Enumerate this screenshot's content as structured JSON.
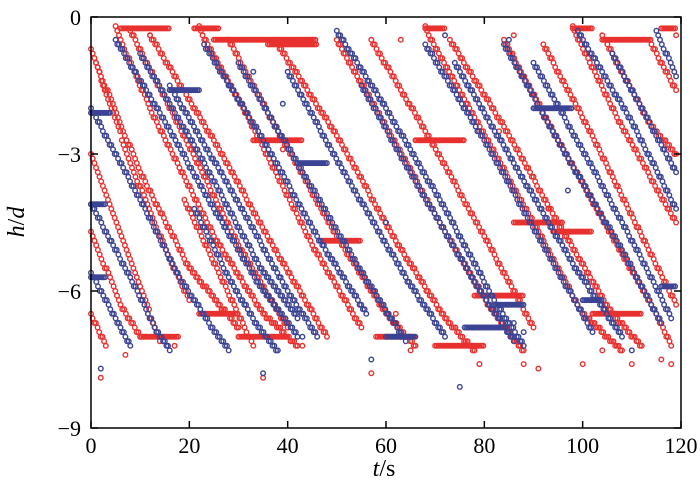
{
  "chart_data": {
    "type": "scatter",
    "title": "",
    "xlabel": {
      "italic": "t",
      "rest": "/s"
    },
    "ylabel": {
      "italic": "h",
      "sep": "/",
      "italic2": "d"
    },
    "xlim": [
      0,
      120
    ],
    "ylim": [
      -9,
      0
    ],
    "xticks": [
      0,
      20,
      40,
      60,
      80,
      100,
      120
    ],
    "xtick_labels": [
      "0",
      "20",
      "40",
      "60",
      "80",
      "100",
      "120"
    ],
    "yticks": [
      0,
      -3,
      -6,
      -9
    ],
    "ytick_labels": [
      "0",
      "−3",
      "−6",
      "−9"
    ],
    "grid": false,
    "legend": "none",
    "marker": "open-circle",
    "colors": {
      "red": "#e8312f",
      "blue": "#3b4394"
    },
    "series": [
      {
        "color": "red",
        "tracks": [
          [
            [
              0.0,
              -0.7
            ],
            [
              8.0,
              -3.2
            ],
            [
              16.0,
              -5.3
            ],
            [
              20.0,
              -6.2
            ]
          ],
          [
            [
              0.0,
              -3.0
            ],
            [
              10.0,
              -5.9
            ],
            [
              14.0,
              -7.1
            ]
          ],
          [
            [
              0.0,
              -4.7
            ],
            [
              6.0,
              -6.3
            ],
            [
              10.0,
              -7.0
            ]
          ],
          [
            [
              0.0,
              -6.5
            ],
            [
              3.0,
              -7.2
            ]
          ],
          [
            [
              1.0,
              -1.0
            ],
            [
              10.0,
              -3.4
            ],
            [
              20.0,
              -5.5
            ],
            [
              30.0,
              -6.8
            ]
          ],
          [
            [
              5.0,
              -0.25
            ],
            [
              12.0,
              -2.0
            ],
            [
              25.0,
              -4.8
            ],
            [
              35.0,
              -6.5
            ],
            [
              42.0,
              -7.2
            ]
          ],
          [
            [
              8.0,
              -0.3
            ],
            [
              18.0,
              -2.4
            ],
            [
              30.0,
              -5.0
            ],
            [
              40.0,
              -6.8
            ]
          ],
          [
            [
              12.0,
              -0.4
            ],
            [
              25.0,
              -2.7
            ],
            [
              38.0,
              -5.2
            ],
            [
              48.0,
              -7.0
            ]
          ],
          [
            [
              19.0,
              -4.0
            ],
            [
              26.0,
              -5.6
            ],
            [
              33.0,
              -7.2
            ]
          ],
          [
            [
              22.0,
              -0.25
            ],
            [
              32.0,
              -2.2
            ],
            [
              45.0,
              -5.0
            ],
            [
              55.0,
              -6.8
            ]
          ],
          [
            [
              28.0,
              -0.5
            ],
            [
              38.0,
              -2.5
            ],
            [
              50.0,
              -4.8
            ],
            [
              60.0,
              -6.5
            ],
            [
              66.0,
              -7.2
            ]
          ],
          [
            [
              38.0,
              -0.6
            ],
            [
              50.0,
              -2.6
            ],
            [
              62.0,
              -4.9
            ],
            [
              72.0,
              -6.6
            ],
            [
              78.0,
              -7.3
            ]
          ],
          [
            [
              50.0,
              -0.5
            ],
            [
              60.0,
              -2.4
            ],
            [
              72.0,
              -4.7
            ],
            [
              82.0,
              -6.5
            ],
            [
              88.0,
              -7.3
            ]
          ],
          [
            [
              57.0,
              -0.5
            ],
            [
              68.0,
              -2.5
            ],
            [
              80.0,
              -4.8
            ],
            [
              90.0,
              -6.8
            ]
          ],
          [
            [
              68.0,
              -0.25
            ],
            [
              78.0,
              -2.2
            ],
            [
              90.0,
              -4.5
            ],
            [
              100.0,
              -6.5
            ],
            [
              108.0,
              -7.3
            ]
          ],
          [
            [
              73.0,
              -0.5
            ],
            [
              84.0,
              -2.4
            ],
            [
              96.0,
              -4.7
            ],
            [
              106.0,
              -6.5
            ],
            [
              112.0,
              -7.2
            ]
          ],
          [
            [
              84.0,
              -0.5
            ],
            [
              94.0,
              -2.5
            ],
            [
              106.0,
              -4.8
            ],
            [
              115.0,
              -6.5
            ],
            [
              118.0,
              -7.2
            ]
          ],
          [
            [
              92.0,
              -0.6
            ],
            [
              102.0,
              -2.6
            ],
            [
              112.0,
              -4.8
            ],
            [
              119.0,
              -6.3
            ]
          ],
          [
            [
              98.0,
              -0.25
            ],
            [
              108.0,
              -2.4
            ],
            [
              119.0,
              -4.5
            ]
          ],
          [
            [
              104.0,
              -0.4
            ],
            [
              114.0,
              -2.4
            ],
            [
              119.0,
              -3.0
            ]
          ],
          [
            [
              114.0,
              -0.6
            ],
            [
              119.0,
              -1.6
            ]
          ]
        ],
        "flats": [
          [
            6.0,
            16.0,
            -0.25
          ],
          [
            21.0,
            26.0,
            -0.25
          ],
          [
            25.0,
            46.0,
            -0.5
          ],
          [
            36.0,
            46.0,
            -0.6
          ],
          [
            33.0,
            43.0,
            -2.7
          ],
          [
            22.0,
            30.0,
            -6.5
          ],
          [
            10.0,
            18.0,
            -7.0
          ],
          [
            30.0,
            40.0,
            -7.0
          ],
          [
            58.0,
            66.0,
            -7.0
          ],
          [
            68.0,
            72.0,
            -0.25
          ],
          [
            66.0,
            76.0,
            -2.7
          ],
          [
            78.0,
            88.0,
            -6.1
          ],
          [
            70.0,
            80.0,
            -7.2
          ],
          [
            98.0,
            102.0,
            -0.25
          ],
          [
            104.0,
            114.0,
            -0.5
          ],
          [
            94.0,
            102.0,
            -4.7
          ],
          [
            102.0,
            112.0,
            -6.5
          ],
          [
            116.0,
            119.0,
            -0.25
          ],
          [
            47.0,
            55.0,
            -4.9
          ],
          [
            86.0,
            96.0,
            -4.5
          ]
        ],
        "scatter": [
          [
            2.0,
            -7.9
          ],
          [
            35.0,
            -7.9
          ],
          [
            57.0,
            -7.8
          ],
          [
            79.0,
            -7.6
          ],
          [
            88.0,
            -7.6
          ],
          [
            91.0,
            -7.7
          ],
          [
            100.0,
            -7.6
          ],
          [
            110.0,
            -7.6
          ],
          [
            118.0,
            -7.6
          ],
          [
            7.0,
            -7.4
          ],
          [
            17.0,
            -7.2
          ],
          [
            43.0,
            -7.2
          ],
          [
            65.0,
            -7.3
          ],
          [
            104.0,
            -7.3
          ],
          [
            116.0,
            -7.5
          ],
          [
            39.0,
            -2.9
          ],
          [
            83.0,
            -2.5
          ],
          [
            93.0,
            -4.2
          ],
          [
            86.0,
            -0.4
          ],
          [
            63.0,
            -0.5
          ],
          [
            119.0,
            -0.4
          ],
          [
            12.0,
            -0.4
          ],
          [
            62.0,
            -6.5
          ]
        ]
      },
      {
        "color": "blue",
        "tracks": [
          [
            [
              0.0,
              -2.0
            ],
            [
              10.0,
              -4.0
            ],
            [
              18.0,
              -5.7
            ],
            [
              24.0,
              -6.7
            ],
            [
              28.0,
              -7.3
            ]
          ],
          [
            [
              0.0,
              -4.1
            ],
            [
              8.0,
              -5.7
            ],
            [
              13.0,
              -6.8
            ],
            [
              16.0,
              -7.3
            ]
          ],
          [
            [
              0.0,
              -5.6
            ],
            [
              5.0,
              -6.6
            ],
            [
              8.0,
              -7.2
            ]
          ],
          [
            [
              5.0,
              -0.5
            ],
            [
              14.0,
              -2.1
            ],
            [
              25.0,
              -4.2
            ],
            [
              35.0,
              -6.0
            ],
            [
              42.0,
              -7.0
            ]
          ],
          [
            [
              10.0,
              -0.8
            ],
            [
              22.0,
              -3.0
            ],
            [
              34.0,
              -5.4
            ],
            [
              42.0,
              -6.6
            ]
          ],
          [
            [
              16.0,
              -1.5
            ],
            [
              28.0,
              -3.7
            ],
            [
              40.0,
              -6.0
            ],
            [
              46.0,
              -7.0
            ]
          ],
          [
            [
              21.0,
              -4.2
            ],
            [
              28.0,
              -5.7
            ],
            [
              34.0,
              -6.8
            ],
            [
              38.0,
              -7.3
            ]
          ],
          [
            [
              23.0,
              -0.6
            ],
            [
              34.0,
              -2.5
            ],
            [
              46.0,
              -4.8
            ],
            [
              56.0,
              -6.5
            ]
          ],
          [
            [
              30.0,
              -1.0
            ],
            [
              42.0,
              -3.2
            ],
            [
              54.0,
              -5.4
            ],
            [
              64.0,
              -7.1
            ]
          ],
          [
            [
              40.0,
              -1.2
            ],
            [
              52.0,
              -3.5
            ],
            [
              64.0,
              -5.7
            ],
            [
              72.0,
              -7.0
            ]
          ],
          [
            [
              50.0,
              -0.3
            ],
            [
              60.0,
              -2.0
            ],
            [
              72.0,
              -4.2
            ],
            [
              82.0,
              -6.2
            ],
            [
              88.0,
              -7.2
            ]
          ],
          [
            [
              55.0,
              -1.5
            ],
            [
              66.0,
              -3.6
            ],
            [
              78.0,
              -5.8
            ],
            [
              86.0,
              -7.1
            ]
          ],
          [
            [
              68.0,
              -0.6
            ],
            [
              80.0,
              -2.7
            ],
            [
              92.0,
              -5.0
            ],
            [
              102.0,
              -6.9
            ]
          ],
          [
            [
              74.0,
              -1.0
            ],
            [
              86.0,
              -3.2
            ],
            [
              98.0,
              -5.4
            ],
            [
              108.0,
              -7.0
            ]
          ],
          [
            [
              84.0,
              -0.6
            ],
            [
              96.0,
              -2.9
            ],
            [
              108.0,
              -5.1
            ],
            [
              116.0,
              -6.7
            ]
          ],
          [
            [
              90.0,
              -1.0
            ],
            [
              102.0,
              -3.3
            ],
            [
              113.0,
              -5.5
            ],
            [
              118.0,
              -6.6
            ]
          ],
          [
            [
              99.0,
              -0.3
            ],
            [
              110.0,
              -2.3
            ],
            [
              119.0,
              -4.2
            ]
          ],
          [
            [
              106.0,
              -0.8
            ],
            [
              116.0,
              -2.8
            ],
            [
              119.0,
              -3.4
            ]
          ],
          [
            [
              115.0,
              -0.3
            ],
            [
              119.0,
              -1.3
            ]
          ]
        ],
        "flats": [
          [
            0.0,
            4.0,
            -2.1
          ],
          [
            0.0,
            3.0,
            -4.1
          ],
          [
            0.0,
            3.0,
            -5.7
          ],
          [
            16.0,
            22.0,
            -1.6
          ],
          [
            42.0,
            48.0,
            -3.2
          ],
          [
            90.0,
            98.0,
            -2.0
          ],
          [
            76.0,
            84.0,
            -6.8
          ],
          [
            60.0,
            66.0,
            -7.0
          ],
          [
            100.0,
            104.0,
            -6.2
          ],
          [
            116.0,
            119.0,
            -5.9
          ],
          [
            82.0,
            88.0,
            -6.3
          ]
        ],
        "scatter": [
          [
            2.0,
            -7.7
          ],
          [
            35.0,
            -7.8
          ],
          [
            75.0,
            -8.1
          ],
          [
            57.0,
            -7.5
          ],
          [
            43.0,
            -7.0
          ],
          [
            86.0,
            -6.7
          ],
          [
            88.0,
            -6.9
          ],
          [
            63.0,
            -7.0
          ],
          [
            85.0,
            -0.5
          ],
          [
            39.0,
            -1.9
          ],
          [
            72.0,
            -0.4
          ],
          [
            110.0,
            -7.3
          ],
          [
            97.0,
            -3.8
          ],
          [
            60.0,
            -4.5
          ],
          [
            33.0,
            -1.2
          ]
        ]
      }
    ]
  }
}
